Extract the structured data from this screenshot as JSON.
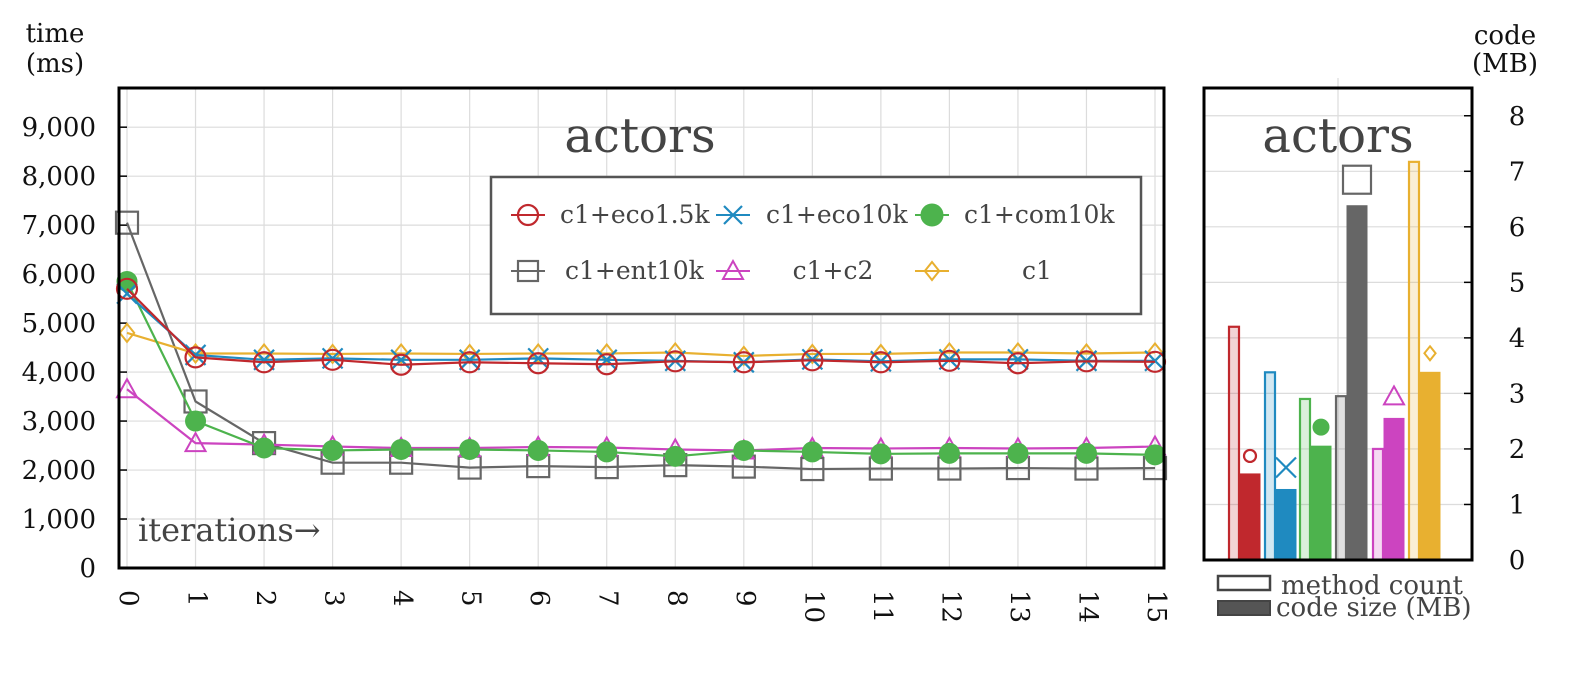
{
  "chart_data": [
    {
      "type": "line",
      "title": "actors",
      "ylabel": "time\n(ms)",
      "xlabel": "iterations→",
      "x": [
        0,
        1,
        2,
        3,
        4,
        5,
        6,
        7,
        8,
        9,
        10,
        11,
        12,
        13,
        14,
        15
      ],
      "ylim": [
        0,
        9800
      ],
      "yticks": [
        0,
        1000,
        2000,
        3000,
        4000,
        5000,
        6000,
        7000,
        8000,
        9000
      ],
      "ytick_labels": [
        "0",
        "1,000",
        "2,000",
        "3,000",
        "4,000",
        "5,000",
        "6,000",
        "7,000",
        "8,000",
        "9,000"
      ],
      "grid": true,
      "legend_position": "upper-right",
      "series": [
        {
          "name": "c1+eco1.5k",
          "color": "#c0282d",
          "marker": "circle",
          "values": [
            5700,
            4300,
            4200,
            4250,
            4150,
            4200,
            4180,
            4160,
            4220,
            4200,
            4240,
            4200,
            4230,
            4180,
            4220,
            4210
          ]
        },
        {
          "name": "c1+eco10k",
          "color": "#1f8ac0",
          "marker": "x",
          "values": [
            5600,
            4350,
            4250,
            4280,
            4250,
            4250,
            4280,
            4250,
            4230,
            4200,
            4260,
            4220,
            4260,
            4260,
            4230,
            4230
          ]
        },
        {
          "name": "c1+com10k",
          "color": "#4db34d",
          "marker": "dot",
          "values": [
            5850,
            3000,
            2450,
            2400,
            2420,
            2420,
            2400,
            2370,
            2280,
            2400,
            2370,
            2330,
            2340,
            2340,
            2340,
            2310
          ]
        },
        {
          "name": "c1+ent10k",
          "color": "#666666",
          "marker": "square",
          "values": [
            7050,
            3400,
            2550,
            2150,
            2150,
            2050,
            2080,
            2060,
            2100,
            2070,
            2020,
            2030,
            2030,
            2040,
            2030,
            2040
          ]
        },
        {
          "name": "c1+c2",
          "color": "#cc44c0",
          "marker": "triangle",
          "values": [
            3650,
            2550,
            2520,
            2480,
            2450,
            2450,
            2470,
            2460,
            2420,
            2400,
            2450,
            2440,
            2450,
            2440,
            2450,
            2480
          ]
        },
        {
          "name": "c1",
          "color": "#e8b030",
          "marker": "diamond",
          "values": [
            4800,
            4380,
            4380,
            4370,
            4380,
            4370,
            4380,
            4380,
            4400,
            4330,
            4370,
            4370,
            4400,
            4400,
            4380,
            4400
          ]
        }
      ]
    },
    {
      "type": "bar",
      "title": "actors",
      "ylabel": "code\n(MB)",
      "ylim": [
        0,
        8.5
      ],
      "yticks": [
        0,
        1,
        2,
        3,
        4,
        5,
        6,
        7,
        8
      ],
      "legend": [
        "method count",
        "code size (MB)"
      ],
      "series": [
        {
          "name": "c1+eco1.5k",
          "color": "#c0282d",
          "marker": "circle",
          "method_count": 4.2,
          "code_size": 1.55
        },
        {
          "name": "c1+eco10k",
          "color": "#1f8ac0",
          "marker": "x",
          "method_count": 3.38,
          "code_size": 1.27
        },
        {
          "name": "c1+com10k",
          "color": "#4db34d",
          "marker": "dot",
          "method_count": 2.9,
          "code_size": 2.05
        },
        {
          "name": "c1+ent10k",
          "color": "#666666",
          "marker": "square",
          "method_count": 2.95,
          "code_size": 6.38
        },
        {
          "name": "c1+c2",
          "color": "#cc44c0",
          "marker": "triangle",
          "method_count": 2.0,
          "code_size": 2.55
        },
        {
          "name": "c1",
          "color": "#e8b030",
          "marker": "diamond",
          "method_count": 7.17,
          "code_size": 3.38
        }
      ]
    }
  ]
}
